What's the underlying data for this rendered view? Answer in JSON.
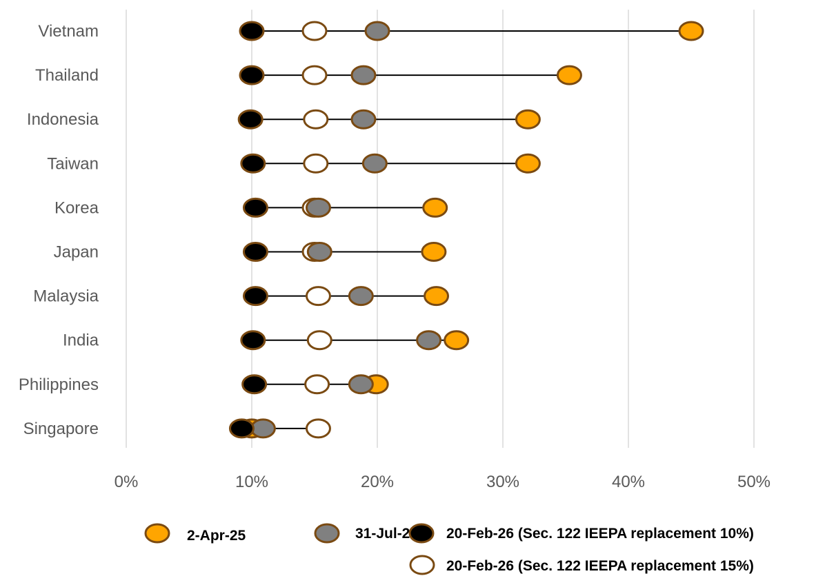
{
  "chart_data": {
    "type": "scatter",
    "title": "",
    "xlabel": "",
    "ylabel": "",
    "xlim": [
      0,
      50
    ],
    "x_ticks": [
      "0%",
      "10%",
      "20%",
      "30%",
      "40%",
      "50%"
    ],
    "grid": "vertical",
    "legend_position": "bottom",
    "categories": [
      "Vietnam",
      "Thailand",
      "Indonesia",
      "Taiwan",
      "Korea",
      "Japan",
      "Malaysia",
      "India",
      "Philippines",
      "Singapore"
    ],
    "series": [
      {
        "name": "2-Apr-25",
        "fill": "#FFA500",
        "stroke": "#7A4A12",
        "values": [
          45,
          35.3,
          32,
          32,
          24.6,
          24.5,
          24.7,
          26.3,
          19.9,
          10
        ]
      },
      {
        "name": "31-Jul-25",
        "fill": "#808080",
        "stroke": "#7A4A12",
        "values": [
          20,
          18.9,
          18.9,
          19.8,
          15.3,
          15.4,
          18.7,
          24.1,
          18.7,
          10.9
        ]
      },
      {
        "name": "20-Feb-26 (Sec. 122 IEEPA replacement 10%)",
        "fill": "#000000",
        "stroke": "#7A4A12",
        "values": [
          10,
          10,
          9.9,
          10.1,
          10.3,
          10.3,
          10.3,
          10.1,
          10.2,
          9.2
        ]
      },
      {
        "name": "20-Feb-26 (Sec. 122 IEEPA replacement 15%)",
        "fill": "#FFFFFF",
        "stroke": "#7A4A12",
        "values": [
          15,
          15,
          15.1,
          15.1,
          15,
          15,
          15.3,
          15.4,
          15.2,
          15.3
        ]
      }
    ]
  }
}
